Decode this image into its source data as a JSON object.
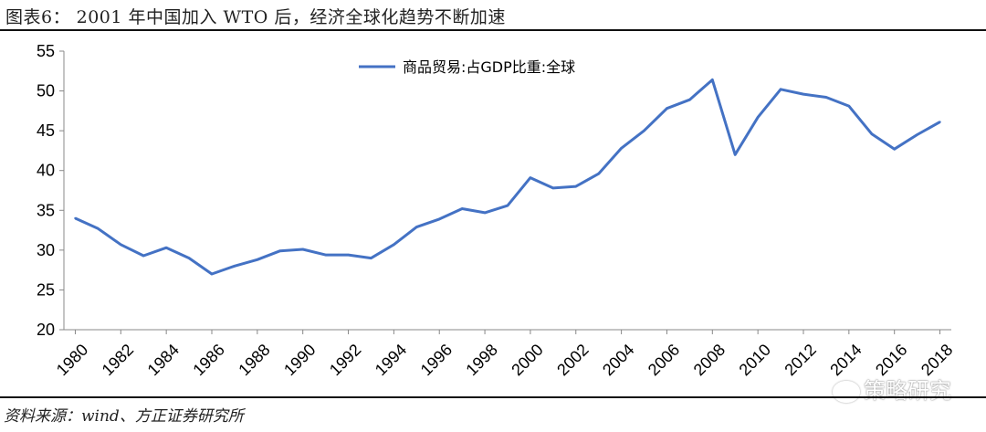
{
  "figure_title": "图表6：  2001 年中国加入 WTO 后，经济全球化趋势不断加速",
  "source_note": "资料来源：wind、方正证券研究所",
  "watermark": "策略研究",
  "chart_data": {
    "type": "line",
    "x": [
      1980,
      1981,
      1982,
      1983,
      1984,
      1985,
      1986,
      1987,
      1988,
      1989,
      1990,
      1991,
      1992,
      1993,
      1994,
      1995,
      1996,
      1997,
      1998,
      1999,
      2000,
      2001,
      2002,
      2003,
      2004,
      2005,
      2006,
      2007,
      2008,
      2009,
      2010,
      2011,
      2012,
      2013,
      2014,
      2015,
      2016,
      2017,
      2018
    ],
    "series": [
      {
        "name": "商品贸易:占GDP比重:全球",
        "color": "#4472C4",
        "values": [
          34.0,
          32.7,
          30.7,
          29.3,
          30.3,
          29.0,
          27.0,
          28.0,
          28.8,
          29.9,
          30.1,
          29.4,
          29.4,
          29.0,
          30.7,
          32.9,
          33.9,
          35.2,
          34.7,
          35.6,
          39.1,
          37.8,
          38.0,
          39.6,
          42.8,
          45.0,
          47.8,
          48.9,
          51.4,
          42.0,
          46.7,
          50.2,
          49.6,
          49.2,
          48.1,
          44.6,
          42.7,
          44.5,
          46.1
        ]
      }
    ],
    "x_tick_labels": [
      "1980",
      "1982",
      "1984",
      "1986",
      "1988",
      "1990",
      "1992",
      "1994",
      "1996",
      "1998",
      "2000",
      "2002",
      "2004",
      "2006",
      "2008",
      "2010",
      "2012",
      "2014",
      "2016",
      "2018"
    ],
    "y_ticks": [
      20,
      25,
      30,
      35,
      40,
      45,
      50,
      55
    ],
    "ylim": [
      20,
      55
    ],
    "xlim": [
      1979.5,
      2018.5
    ],
    "grid": false,
    "legend_position": "top-center"
  }
}
